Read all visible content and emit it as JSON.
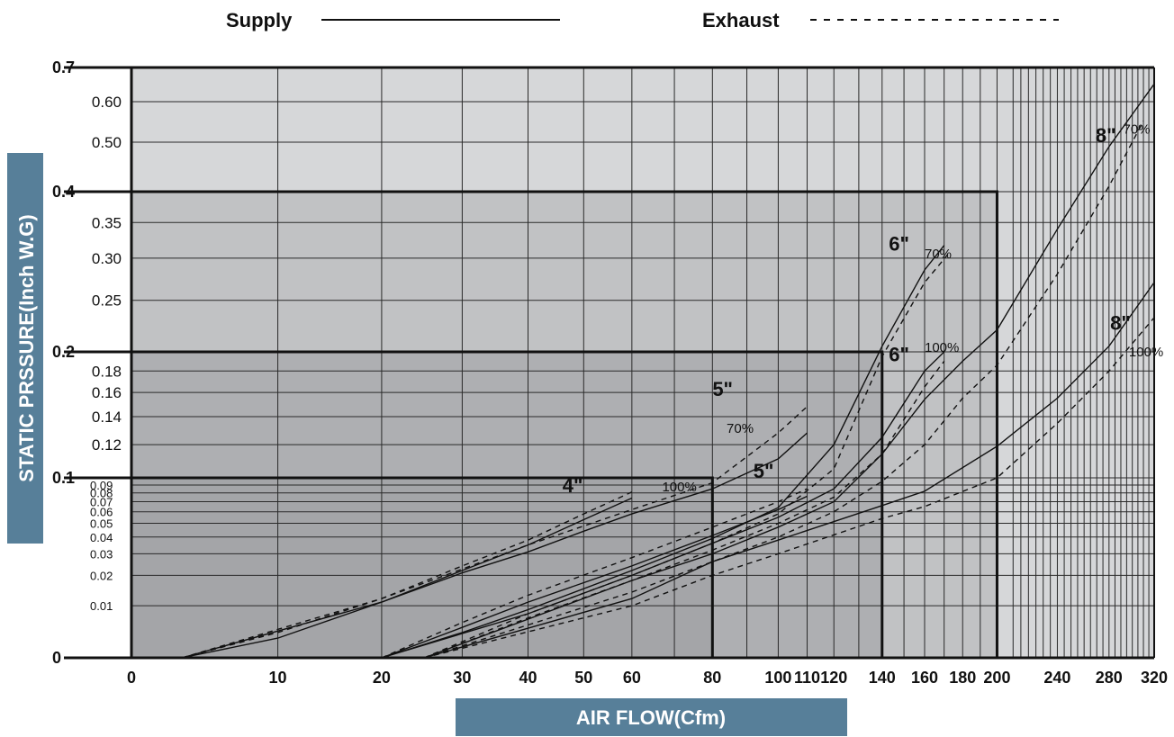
{
  "chart_data": {
    "type": "line",
    "xlabel": "AIR FLOW(Cfm)",
    "ylabel": "STATIC PRSSURE(Inch W.G)",
    "xlim": [
      0,
      320
    ],
    "ylim": [
      0,
      0.7
    ],
    "x_scale": "log(x+20)",
    "y_scale": "piecewise",
    "grid": true,
    "legend": [
      {
        "name": "Supply",
        "style": "solid"
      },
      {
        "name": "Exhaust",
        "style": "dashed"
      }
    ],
    "x_ticks": [
      "0",
      "10",
      "20",
      "30",
      "40",
      "50",
      "60",
      "80",
      "100",
      "110",
      "120",
      "140",
      "160",
      "180",
      "200",
      "240",
      "280",
      "320"
    ],
    "y_ticks_major": [
      "0",
      "0.1",
      "0.2",
      "0.4",
      "0.7"
    ],
    "y_ticks_mid": [
      "0.12",
      "0.14",
      "0.16",
      "0.18",
      "0.25",
      "0.30",
      "0.35",
      "0.50",
      "0.60"
    ],
    "y_ticks_small": [
      "0.01",
      "0.02",
      "0.03",
      "0.04",
      "0.05",
      "0.06",
      "0.07",
      "0.08",
      "0.09"
    ],
    "zones": [
      {
        "x_max": 200,
        "y_max": 0.4
      },
      {
        "x_max": 140,
        "y_max": 0.2
      },
      {
        "x_max": 80,
        "y_max": 0.1
      }
    ],
    "series": [
      {
        "size": "4\"",
        "damper": "",
        "style": "solid",
        "points": [
          [
            3,
            0
          ],
          [
            10,
            0.003
          ],
          [
            20,
            0.011
          ],
          [
            30,
            0.022
          ],
          [
            40,
            0.035
          ],
          [
            50,
            0.053
          ],
          [
            60,
            0.074
          ]
        ]
      },
      {
        "size": "4\"",
        "damper": "",
        "style": "dashed",
        "points": [
          [
            3,
            0
          ],
          [
            10,
            0.004
          ],
          [
            20,
            0.012
          ],
          [
            30,
            0.024
          ],
          [
            40,
            0.038
          ],
          [
            50,
            0.058
          ],
          [
            60,
            0.081
          ]
        ]
      },
      {
        "size": "5\"",
        "damper": "70%",
        "style": "solid",
        "points": [
          [
            3,
            0
          ],
          [
            20,
            0.011
          ],
          [
            30,
            0.021
          ],
          [
            40,
            0.031
          ],
          [
            50,
            0.044
          ],
          [
            60,
            0.058
          ],
          [
            80,
            0.085
          ],
          [
            100,
            0.111
          ],
          [
            110,
            0.128
          ]
        ]
      },
      {
        "size": "5\"",
        "damper": "70%",
        "style": "dashed",
        "points": [
          [
            3,
            0
          ],
          [
            20,
            0.012
          ],
          [
            40,
            0.035
          ],
          [
            60,
            0.062
          ],
          [
            80,
            0.093
          ],
          [
            100,
            0.128
          ],
          [
            110,
            0.148
          ]
        ]
      },
      {
        "size": "5\"",
        "damper": "100%",
        "style": "solid",
        "points": [
          [
            20,
            0
          ],
          [
            30,
            0.005
          ],
          [
            40,
            0.011
          ],
          [
            60,
            0.024
          ],
          [
            80,
            0.041
          ],
          [
            100,
            0.062
          ],
          [
            110,
            0.076
          ]
        ]
      },
      {
        "size": "5\"",
        "damper": "100%",
        "style": "dashed",
        "points": [
          [
            20,
            0
          ],
          [
            30,
            0.006
          ],
          [
            40,
            0.013
          ],
          [
            60,
            0.028
          ],
          [
            80,
            0.047
          ],
          [
            100,
            0.07
          ],
          [
            110,
            0.085
          ]
        ]
      },
      {
        "size": "6\"",
        "damper": "70%",
        "style": "solid",
        "points": [
          [
            20,
            0
          ],
          [
            30,
            0.004
          ],
          [
            40,
            0.009
          ],
          [
            60,
            0.022
          ],
          [
            80,
            0.039
          ],
          [
            100,
            0.064
          ],
          [
            120,
            0.12
          ],
          [
            140,
            0.205
          ],
          [
            160,
            0.285
          ],
          [
            170,
            0.317
          ]
        ]
      },
      {
        "size": "6\"",
        "damper": "70%",
        "style": "dashed",
        "points": [
          [
            25,
            0
          ],
          [
            40,
            0.008
          ],
          [
            60,
            0.02
          ],
          [
            80,
            0.036
          ],
          [
            100,
            0.058
          ],
          [
            120,
            0.105
          ],
          [
            140,
            0.195
          ],
          [
            160,
            0.27
          ],
          [
            172,
            0.305
          ]
        ]
      },
      {
        "size": "6\"",
        "damper": "100%",
        "style": "solid",
        "points": [
          [
            20,
            0
          ],
          [
            40,
            0.008
          ],
          [
            60,
            0.02
          ],
          [
            80,
            0.036
          ],
          [
            100,
            0.055
          ],
          [
            120,
            0.085
          ],
          [
            140,
            0.125
          ],
          [
            160,
            0.18
          ],
          [
            170,
            0.2
          ]
        ]
      },
      {
        "size": "6\"",
        "damper": "100%",
        "style": "dashed",
        "points": [
          [
            25,
            0
          ],
          [
            40,
            0.007
          ],
          [
            60,
            0.018
          ],
          [
            80,
            0.032
          ],
          [
            100,
            0.05
          ],
          [
            120,
            0.075
          ],
          [
            140,
            0.114
          ],
          [
            160,
            0.165
          ],
          [
            170,
            0.19
          ]
        ]
      },
      {
        "size": "8\"",
        "damper": "70%",
        "style": "solid",
        "points": [
          [
            25,
            0
          ],
          [
            60,
            0.018
          ],
          [
            80,
            0.03
          ],
          [
            100,
            0.047
          ],
          [
            120,
            0.07
          ],
          [
            140,
            0.114
          ],
          [
            160,
            0.154
          ],
          [
            180,
            0.19
          ],
          [
            200,
            0.22
          ],
          [
            240,
            0.34
          ],
          [
            280,
            0.49
          ],
          [
            320,
            0.65
          ]
        ]
      },
      {
        "size": "8\"",
        "damper": "70%",
        "style": "dashed",
        "points": [
          [
            25,
            0
          ],
          [
            60,
            0.014
          ],
          [
            80,
            0.026
          ],
          [
            100,
            0.04
          ],
          [
            120,
            0.06
          ],
          [
            140,
            0.095
          ],
          [
            160,
            0.12
          ],
          [
            180,
            0.155
          ],
          [
            200,
            0.186
          ],
          [
            240,
            0.28
          ],
          [
            280,
            0.41
          ],
          [
            310,
            0.55
          ]
        ]
      },
      {
        "size": "8\"",
        "damper": "100%",
        "style": "solid",
        "points": [
          [
            25,
            0
          ],
          [
            60,
            0.012
          ],
          [
            80,
            0.026
          ],
          [
            100,
            0.038
          ],
          [
            140,
            0.066
          ],
          [
            160,
            0.082
          ],
          [
            200,
            0.119
          ],
          [
            240,
            0.155
          ],
          [
            280,
            0.205
          ],
          [
            320,
            0.27
          ]
        ]
      },
      {
        "size": "8\"",
        "damper": "100%",
        "style": "dashed",
        "points": [
          [
            25,
            0
          ],
          [
            60,
            0.01
          ],
          [
            80,
            0.02
          ],
          [
            100,
            0.03
          ],
          [
            140,
            0.054
          ],
          [
            160,
            0.065
          ],
          [
            200,
            0.1
          ],
          [
            240,
            0.135
          ],
          [
            280,
            0.18
          ],
          [
            320,
            0.232
          ]
        ]
      }
    ],
    "curve_labels": [
      {
        "text": "4\"",
        "kind": "size",
        "x": 46,
        "y": 0.081
      },
      {
        "text": "5\"",
        "kind": "size",
        "x": 80,
        "y": 0.157
      },
      {
        "text": "70%",
        "kind": "pct",
        "x": 84,
        "y": 0.128
      },
      {
        "text": "100%",
        "kind": "pct",
        "x": 67,
        "y": 0.082
      },
      {
        "text": "5\"",
        "kind": "size",
        "x": 92,
        "y": 0.1
      },
      {
        "text": "6\"",
        "kind": "size",
        "x": 143,
        "y": 0.31
      },
      {
        "text": "70%",
        "kind": "pct",
        "x": 160,
        "y": 0.3
      },
      {
        "text": "6\"",
        "kind": "size",
        "x": 143,
        "y": 0.19
      },
      {
        "text": "100%",
        "kind": "pct",
        "x": 160,
        "y": 0.2
      },
      {
        "text": "8\"",
        "kind": "size",
        "x": 269,
        "y": 0.5
      },
      {
        "text": "70%",
        "kind": "pct",
        "x": 292,
        "y": 0.52
      },
      {
        "text": "8\"",
        "kind": "size",
        "x": 281,
        "y": 0.22
      },
      {
        "text": "100%",
        "kind": "pct",
        "x": 297,
        "y": 0.195
      }
    ],
    "colors": {
      "zone_outer": "#d6d7d9",
      "zone_400": "#c1c2c4",
      "zone_200": "#aeafb2",
      "zone_100": "#a4a5a8",
      "grid": "#2a2a2a",
      "axis_title_bg": "#577f99"
    }
  }
}
